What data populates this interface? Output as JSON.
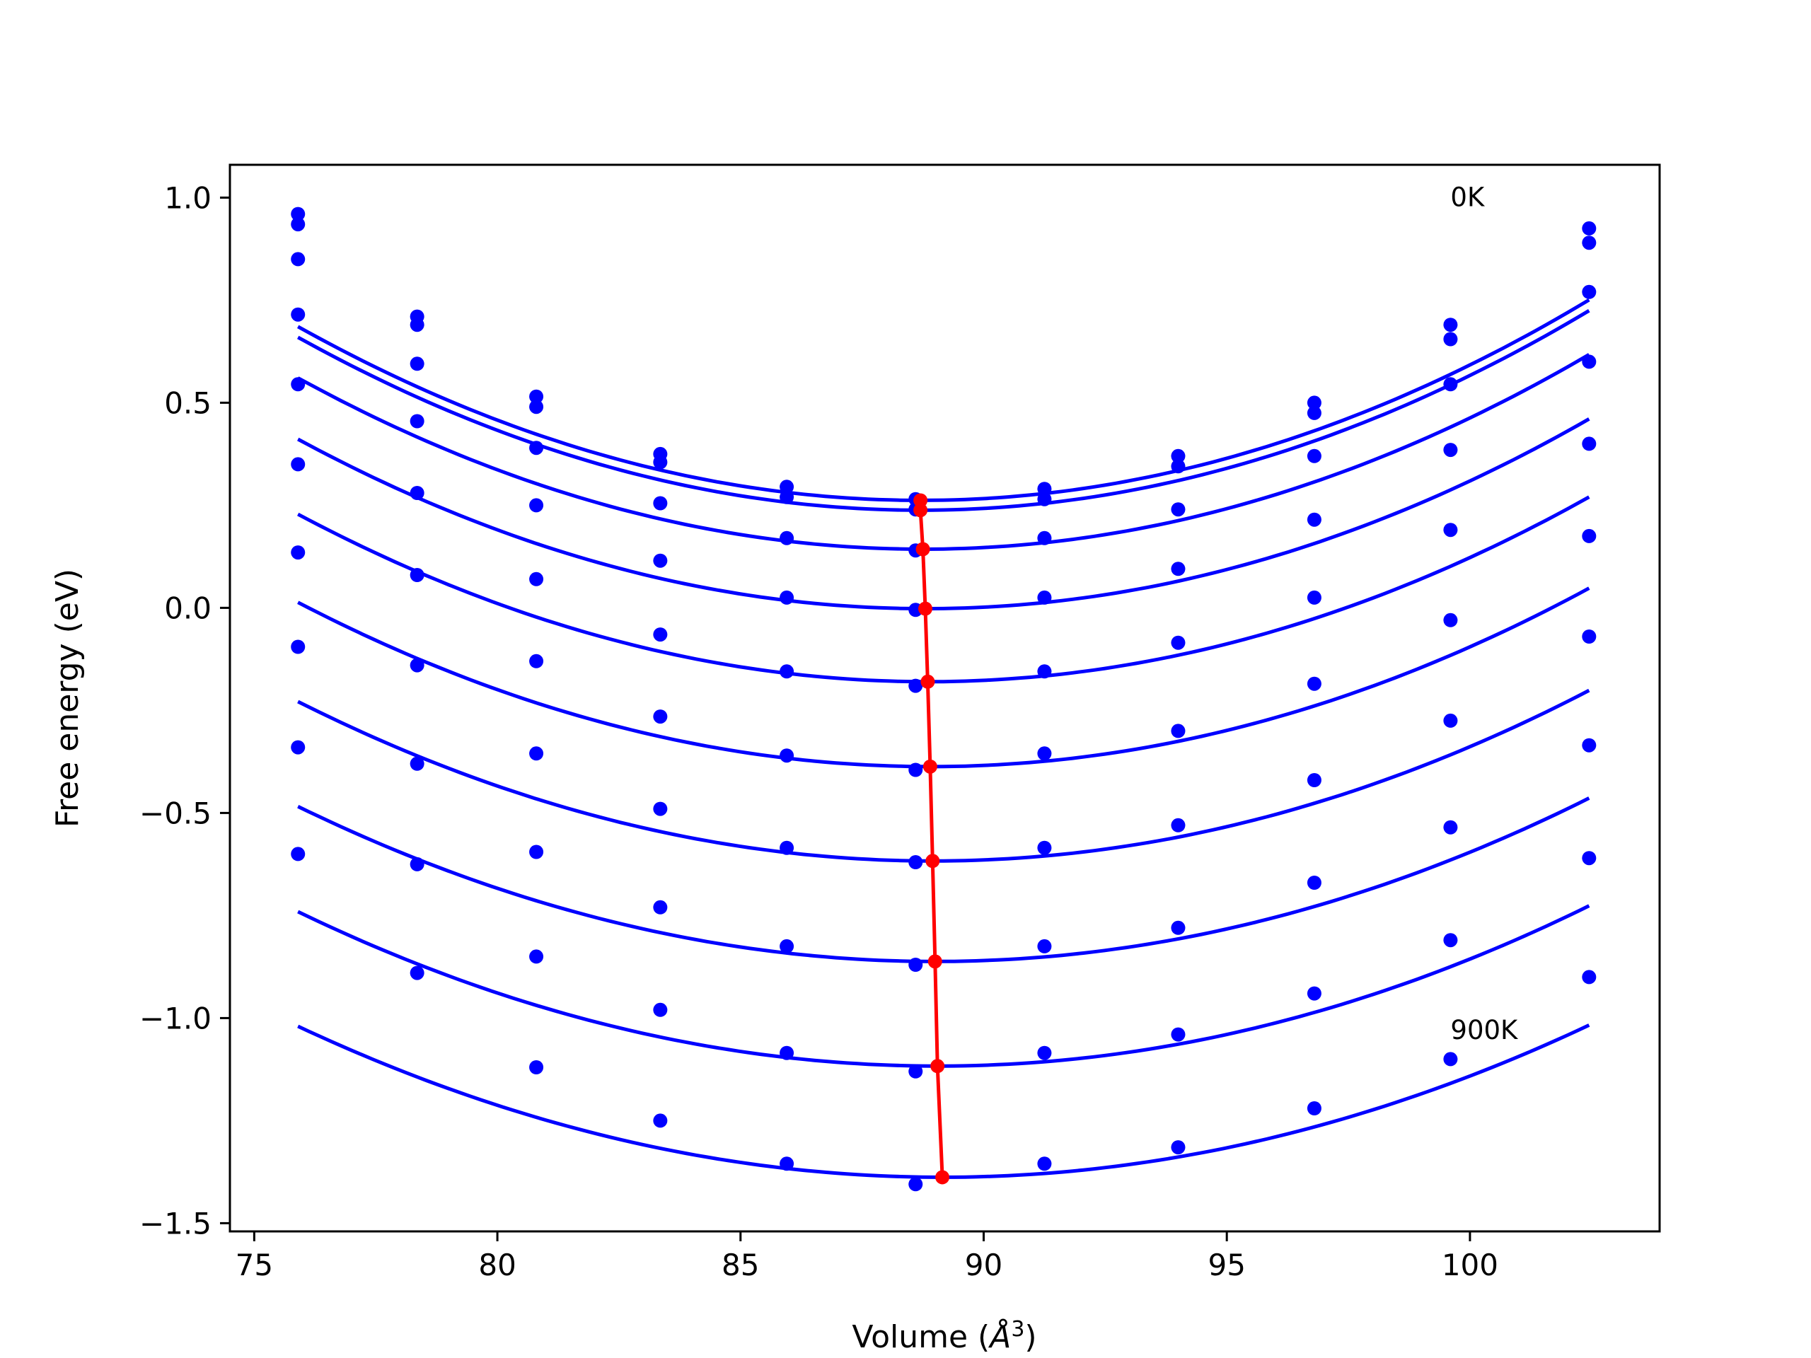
{
  "chart_data": {
    "type": "line",
    "xlabel": "Volume ($\\AA^3$)",
    "xlabel_parts": {
      "main": "Volume (",
      "symbol": "Å",
      "sup": "3",
      "close": ")"
    },
    "ylabel": "Free energy (eV)",
    "xlim": [
      74.5,
      103.9
    ],
    "ylim": [
      -1.52,
      1.08
    ],
    "xticks": [
      75,
      80,
      85,
      90,
      95,
      100
    ],
    "xtick_labels": [
      "75",
      "80",
      "85",
      "90",
      "95",
      "100"
    ],
    "yticks": [
      1.0,
      0.5,
      0.0,
      -0.5,
      -1.0,
      -1.5
    ],
    "ytick_labels": [
      "1.0",
      "0.5",
      "0.0",
      "−0.5",
      "−1.0",
      "−1.5"
    ],
    "grid": false,
    "colors": {
      "curves": "#0000ff",
      "minima": "#ff0000"
    },
    "annotations": [
      {
        "text": "0K",
        "x": 99.6,
        "y": 1.0
      },
      {
        "text": "900K",
        "x": 99.6,
        "y": -1.03
      }
    ],
    "volumes": [
      75.9,
      78.35,
      80.8,
      83.35,
      85.95,
      88.6,
      91.25,
      94.0,
      96.8,
      99.6,
      102.45
    ],
    "series": [
      {
        "values": [
          0.96,
          0.71,
          0.515,
          0.375,
          0.295,
          0.265,
          0.29,
          0.37,
          0.5,
          0.69,
          0.925
        ],
        "fit": {
          "a": 0.002585,
          "x0": 88.7,
          "c": 0.262
        },
        "min": [
          88.7,
          0.262
        ]
      },
      {
        "values": [
          0.935,
          0.69,
          0.49,
          0.355,
          0.27,
          0.24,
          0.265,
          0.345,
          0.475,
          0.655,
          0.89
        ],
        "fit": {
          "a": 0.002573,
          "x0": 88.7,
          "c": 0.238
        },
        "min": [
          88.7,
          0.238
        ]
      },
      {
        "values": [
          0.85,
          0.595,
          0.39,
          0.255,
          0.17,
          0.14,
          0.17,
          0.24,
          0.37,
          0.545,
          0.77
        ],
        "fit": {
          "a": 0.002528,
          "x0": 88.75,
          "c": 0.143
        },
        "min": [
          88.75,
          0.143
        ]
      },
      {
        "values": [
          0.715,
          0.455,
          0.25,
          0.115,
          0.025,
          -0.005,
          0.025,
          0.095,
          0.215,
          0.385,
          0.6
        ],
        "fit": {
          "a": 0.002482,
          "x0": 88.8,
          "c": -0.002
        },
        "min": [
          88.8,
          -0.002
        ]
      },
      {
        "values": [
          0.545,
          0.28,
          0.07,
          -0.065,
          -0.155,
          -0.19,
          -0.155,
          -0.085,
          0.025,
          0.19,
          0.4
        ],
        "fit": {
          "a": 0.002434,
          "x0": 88.85,
          "c": -0.18
        },
        "min": [
          88.85,
          -0.18
        ]
      },
      {
        "values": [
          0.35,
          0.08,
          -0.13,
          -0.265,
          -0.36,
          -0.395,
          -0.355,
          -0.3,
          -0.185,
          -0.03,
          0.175
        ],
        "fit": {
          "a": 0.002369,
          "x0": 88.9,
          "c": -0.387
        },
        "min": [
          88.9,
          -0.387
        ]
      },
      {
        "values": [
          0.135,
          -0.14,
          -0.355,
          -0.49,
          -0.585,
          -0.62,
          -0.585,
          -0.53,
          -0.42,
          -0.275,
          -0.07
        ],
        "fit": {
          "a": 0.002281,
          "x0": 88.95,
          "c": -0.617
        },
        "min": [
          88.95,
          -0.617
        ]
      },
      {
        "values": [
          -0.095,
          -0.38,
          -0.595,
          -0.73,
          -0.825,
          -0.87,
          -0.825,
          -0.78,
          -0.67,
          -0.535,
          -0.335
        ],
        "fit": {
          "a": 0.002201,
          "x0": 89.0,
          "c": -0.862
        },
        "min": [
          89.0,
          -0.862
        ]
      },
      {
        "values": [
          -0.34,
          -0.625,
          -0.85,
          -0.98,
          -1.085,
          -1.13,
          -1.085,
          -1.04,
          -0.94,
          -0.81,
          -0.61
        ],
        "fit": {
          "a": 0.002176,
          "x0": 89.05,
          "c": -1.117
        },
        "min": [
          89.05,
          -1.117
        ]
      },
      {
        "values": [
          -0.6,
          -0.89,
          -1.12,
          -1.25,
          -1.355,
          -1.405,
          -1.355,
          -1.315,
          -1.22,
          -1.1,
          -0.9
        ],
        "fit": {
          "a": 0.002096,
          "x0": 89.15,
          "c": -1.388
        },
        "min": [
          89.15,
          -1.388
        ]
      }
    ]
  }
}
